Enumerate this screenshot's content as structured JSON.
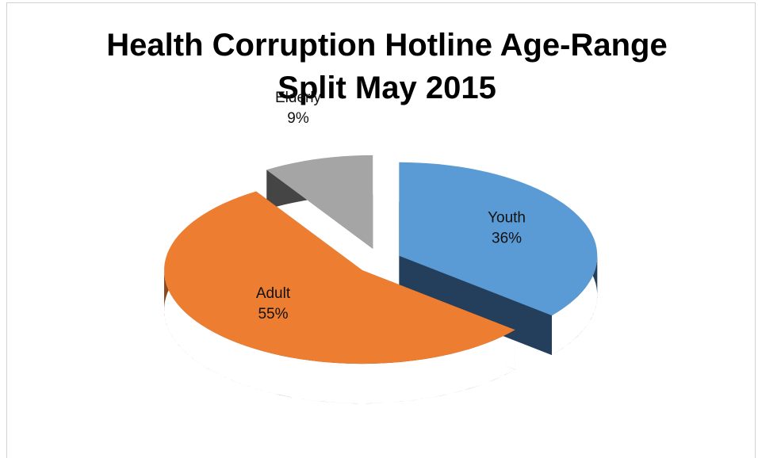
{
  "chart_data": {
    "type": "pie3d",
    "title": "Health Corruption Hotline Age-Range Split May 2015",
    "categories": [
      "Youth",
      "Adult",
      "Elderly"
    ],
    "values": [
      36,
      55,
      9
    ],
    "value_labels": [
      "36%",
      "55%",
      "9%"
    ],
    "colors": [
      "#5b9bd5",
      "#ed7d31",
      "#a5a5a5"
    ],
    "side_colors": [
      "#243f5c",
      "#8c4a1a",
      "#454545"
    ]
  }
}
